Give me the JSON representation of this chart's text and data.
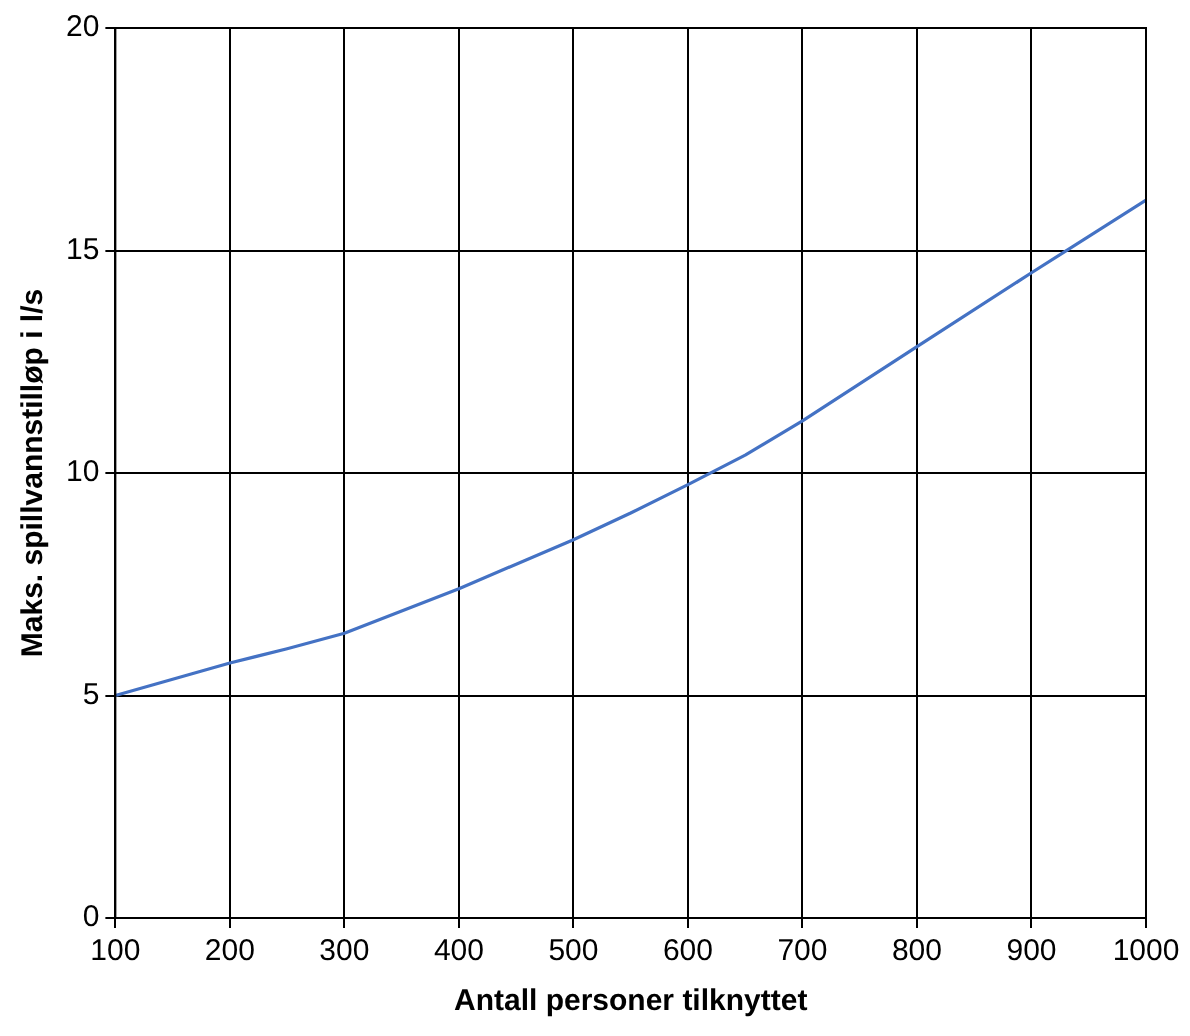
{
  "chart_data": {
    "type": "line",
    "xlabel": "Antall personer tilknyttet",
    "ylabel": "Maks. spillvannstilløp i l/s",
    "x": [
      100,
      200,
      250,
      300,
      400,
      500,
      550,
      600,
      650,
      700,
      800,
      900,
      1000
    ],
    "series": [
      {
        "color": "#4472c4",
        "values": [
          5,
          5.73,
          6.05,
          6.4,
          7.4,
          8.5,
          9.1,
          9.74,
          10.4,
          11.17,
          12.84,
          14.5,
          16.13
        ]
      }
    ],
    "xlim": [
      100,
      1000
    ],
    "xticks": [
      100,
      200,
      300,
      400,
      500,
      600,
      700,
      800,
      900,
      1000
    ],
    "ylim": [
      0,
      20
    ],
    "yticks": [
      0,
      5,
      10,
      15,
      20
    ],
    "grid": true,
    "legend": false,
    "marker": "none",
    "line_style": "solid"
  }
}
